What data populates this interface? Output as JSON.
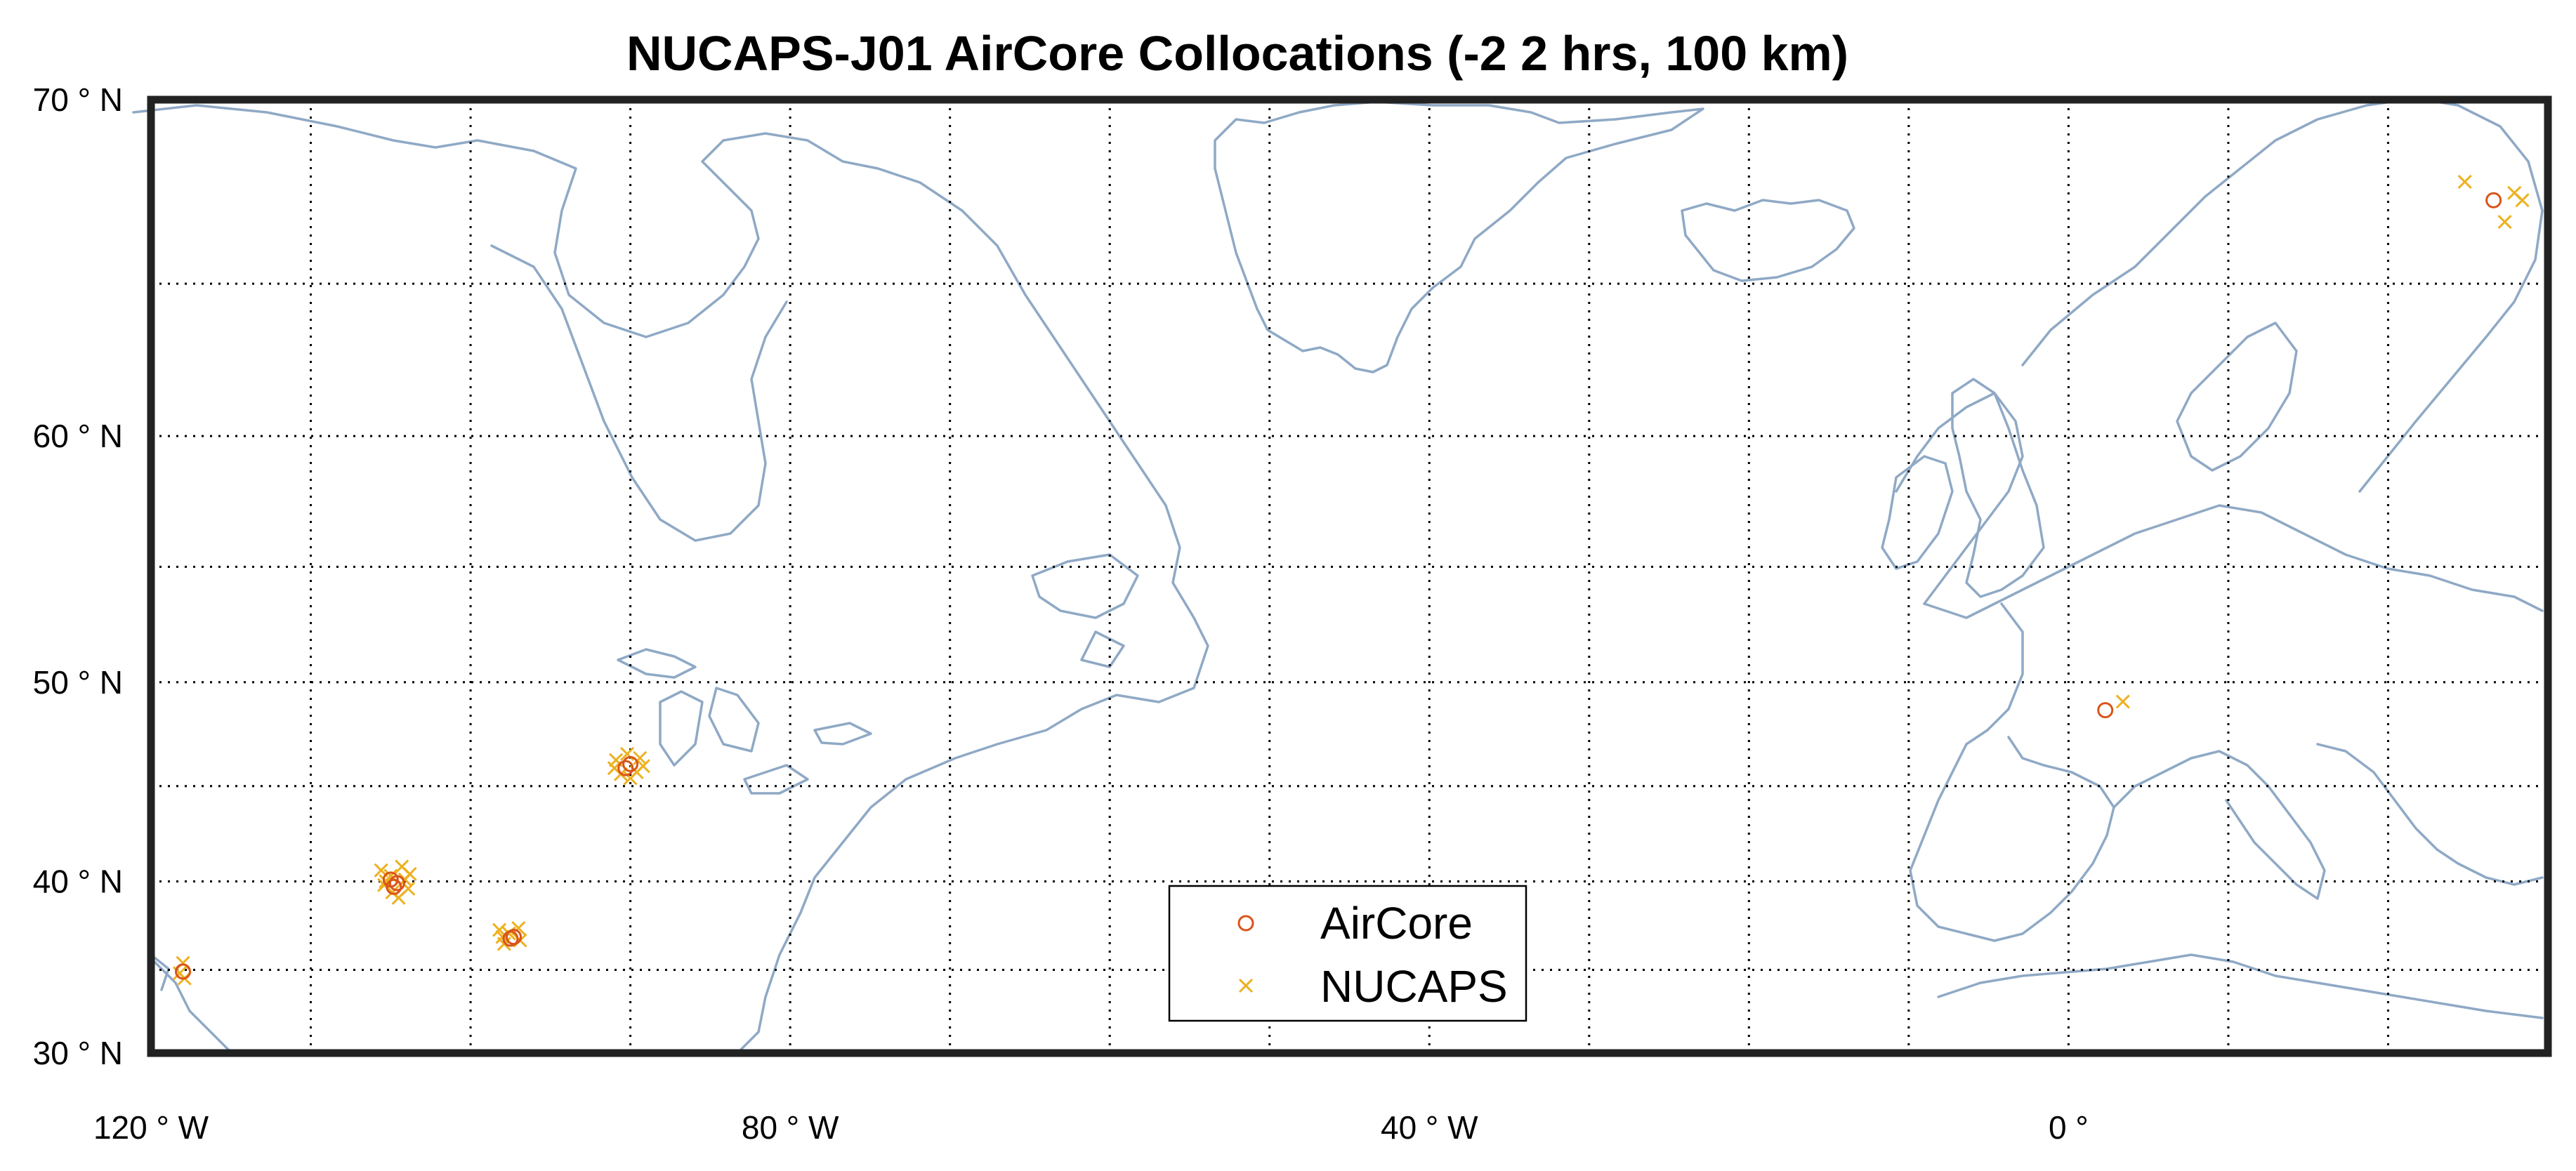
{
  "chart_data": {
    "type": "scatter",
    "title": "NUCAPS-J01 AirCore Collocations (-2  2 hrs, 100 km)",
    "xlabel": "",
    "ylabel": "",
    "xlim": [
      -120,
      30
    ],
    "ylim": [
      30,
      70
    ],
    "grid": true,
    "legend_position": "bottom-center",
    "x_ticks": [
      {
        "value": -120,
        "label": "120 ° W"
      },
      {
        "value": -80,
        "label": "80 ° W"
      },
      {
        "value": -40,
        "label": "40 ° W"
      },
      {
        "value": 0,
        "label": "0 °"
      }
    ],
    "y_ticks": [
      {
        "value": 30,
        "label": "30 ° N"
      },
      {
        "value": 40,
        "label": "40 ° N"
      },
      {
        "value": 50,
        "label": "50 ° N"
      },
      {
        "value": 60,
        "label": "60 ° N"
      },
      {
        "value": 70,
        "label": "70 ° N"
      }
    ],
    "colors": {
      "aircore": "#d9541a",
      "nucaps": "#edb120",
      "coastline": "#8fa9c5",
      "grid": "#000000",
      "frame": "#222222"
    },
    "series": [
      {
        "name": "AirCore",
        "marker": "circle",
        "color": "#d9541a",
        "points": [
          {
            "lon": -118.0,
            "lat": 34.9
          },
          {
            "lon": -105.0,
            "lat": 40.1
          },
          {
            "lon": -104.6,
            "lat": 39.9
          },
          {
            "lon": -104.8,
            "lat": 39.7
          },
          {
            "lon": -97.5,
            "lat": 36.8
          },
          {
            "lon": -97.3,
            "lat": 36.9
          },
          {
            "lon": -90.3,
            "lat": 45.9
          },
          {
            "lon": -90.0,
            "lat": 46.1
          },
          {
            "lon": 2.3,
            "lat": 48.7
          },
          {
            "lon": 26.6,
            "lat": 67.4
          }
        ]
      },
      {
        "name": "NUCAPS",
        "marker": "x",
        "color": "#edb120",
        "points": [
          {
            "lon": -118.0,
            "lat": 35.4
          },
          {
            "lon": -117.9,
            "lat": 34.5
          },
          {
            "lon": -118.2,
            "lat": 34.8
          },
          {
            "lon": -105.6,
            "lat": 40.6
          },
          {
            "lon": -104.3,
            "lat": 40.8
          },
          {
            "lon": -105.4,
            "lat": 39.8
          },
          {
            "lon": -103.9,
            "lat": 39.6
          },
          {
            "lon": -104.5,
            "lat": 39.1
          },
          {
            "lon": -105.0,
            "lat": 40.3
          },
          {
            "lon": -103.8,
            "lat": 40.4
          },
          {
            "lon": -104.9,
            "lat": 39.4
          },
          {
            "lon": -104.1,
            "lat": 40.1
          },
          {
            "lon": -105.3,
            "lat": 40.0
          },
          {
            "lon": -98.2,
            "lat": 37.3
          },
          {
            "lon": -97.0,
            "lat": 37.4
          },
          {
            "lon": -97.9,
            "lat": 36.5
          },
          {
            "lon": -96.9,
            "lat": 36.7
          },
          {
            "lon": -97.6,
            "lat": 37.1
          },
          {
            "lon": -98.0,
            "lat": 36.9
          },
          {
            "lon": -90.9,
            "lat": 46.3
          },
          {
            "lon": -89.4,
            "lat": 46.4
          },
          {
            "lon": -90.6,
            "lat": 45.6
          },
          {
            "lon": -89.6,
            "lat": 45.7
          },
          {
            "lon": -90.2,
            "lat": 46.6
          },
          {
            "lon": -89.2,
            "lat": 46.0
          },
          {
            "lon": -91.0,
            "lat": 45.9
          },
          {
            "lon": -90.0,
            "lat": 45.4
          },
          {
            "lon": 3.4,
            "lat": 49.1
          },
          {
            "lon": 24.8,
            "lat": 67.9
          },
          {
            "lon": 27.9,
            "lat": 67.6
          },
          {
            "lon": 28.4,
            "lat": 67.4
          },
          {
            "lon": 27.3,
            "lat": 66.8
          }
        ]
      }
    ],
    "legend": [
      {
        "label": "AirCore",
        "marker": "circle",
        "color": "#d9541a"
      },
      {
        "label": "NUCAPS",
        "marker": "x",
        "color": "#edb120"
      }
    ]
  }
}
